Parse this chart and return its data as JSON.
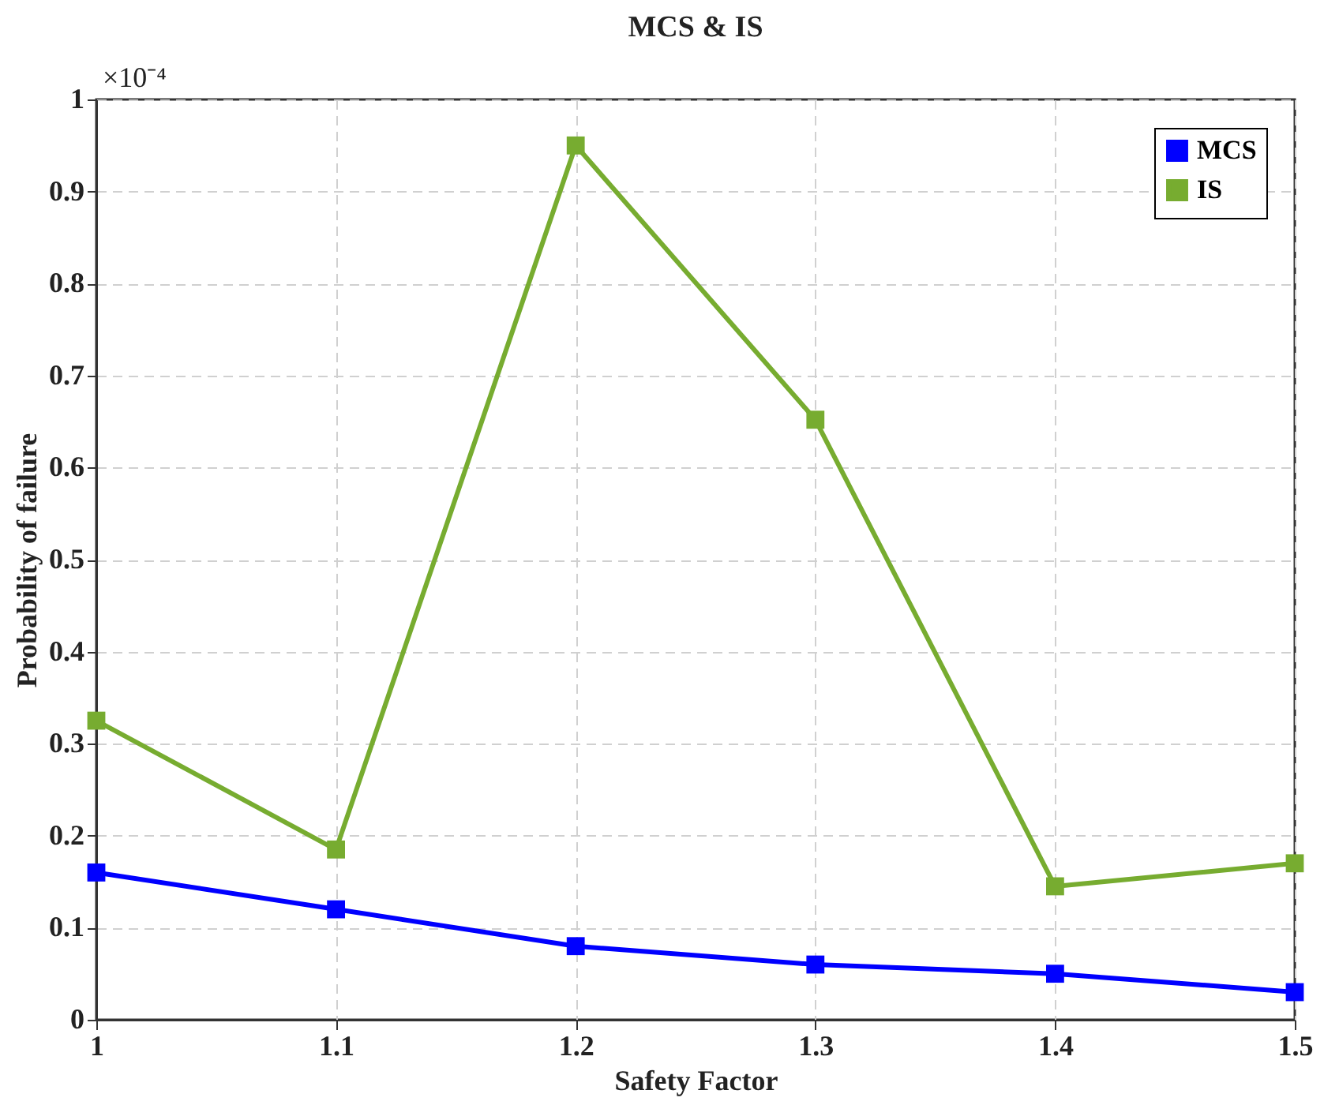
{
  "chart_data": {
    "type": "line",
    "title": "MCS & IS",
    "xlabel": "Safety Factor",
    "ylabel": "Probability of failure",
    "annotations": [
      "×10⁻⁴"
    ],
    "x": [
      1,
      1.1,
      1.2,
      1.3,
      1.4,
      1.5
    ],
    "series": [
      {
        "name": "MCS",
        "color": "#0000ff",
        "values": [
          0.16,
          0.12,
          0.08,
          0.06,
          0.05,
          0.03
        ]
      },
      {
        "name": "IS",
        "color": "#77ac30",
        "values": [
          0.325,
          0.185,
          0.95,
          0.652,
          0.145,
          0.17
        ]
      }
    ],
    "xlim": [
      1,
      1.5
    ],
    "xticks": [
      1,
      1.1,
      1.2,
      1.3,
      1.4,
      1.5
    ],
    "ylim": [
      0,
      1
    ],
    "yticks": [
      0,
      0.1,
      0.2,
      0.3,
      0.4,
      0.5,
      0.6,
      0.7,
      0.8,
      0.9,
      1
    ],
    "grid": true,
    "legend": "top right",
    "marker": "square",
    "line_style": "solid"
  }
}
